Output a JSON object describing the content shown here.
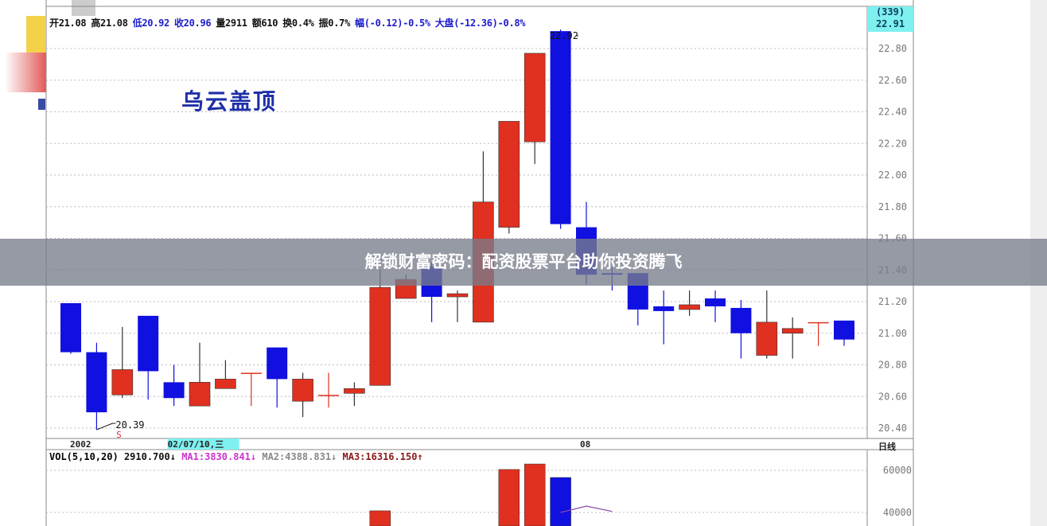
{
  "header": {
    "items": [
      {
        "text": "开21.08",
        "color": "#111111"
      },
      {
        "text": "高21.08",
        "color": "#111111"
      },
      {
        "text": "低20.92",
        "color": "#1c1ccc"
      },
      {
        "text": "收20.96",
        "color": "#1c1ccc"
      },
      {
        "text": "量2911",
        "color": "#111111"
      },
      {
        "text": "额610",
        "color": "#111111"
      },
      {
        "text": "换0.4%",
        "color": "#111111"
      },
      {
        "text": "振0.7%",
        "color": "#111111"
      },
      {
        "text": "幅(-0.12)-0.5%",
        "color": "#1c1ccc"
      },
      {
        "text": "大盘(-12.36)-0.8%",
        "color": "#1c1ccc"
      }
    ]
  },
  "pattern_title": "乌云盖顶",
  "price_tag": {
    "count": "(339)",
    "price": "22.91"
  },
  "banner": "解锁财富密码：配资股票平台助你投资腾飞",
  "chart_data": [
    {
      "type": "candlestick",
      "period": "日线",
      "ylim": [
        20.35,
        22.95
      ],
      "yticks": [
        "22.80",
        "22.60",
        "22.40",
        "22.20",
        "22.00",
        "21.80",
        "21.60",
        "21.40",
        "21.20",
        "21.00",
        "20.80",
        "20.60",
        "20.40"
      ],
      "xlabels": [
        {
          "index": 0,
          "text": "2002"
        },
        {
          "index": 4,
          "text": "02/07/10,三",
          "highlight": true
        },
        {
          "index": 20,
          "text": "08"
        }
      ],
      "annotations": [
        {
          "index": 20,
          "text": "22.92"
        },
        {
          "index": 1,
          "text": "20.39"
        },
        {
          "index": 1,
          "text": "S"
        }
      ],
      "colors": {
        "up": "#e03020",
        "down": "#1010e0"
      },
      "ohlc": [
        [
          21.19,
          21.19,
          20.87,
          20.88
        ],
        [
          20.88,
          20.94,
          20.39,
          20.5
        ],
        [
          20.61,
          21.04,
          20.59,
          20.77
        ],
        [
          21.11,
          21.11,
          20.58,
          20.76
        ],
        [
          20.69,
          20.8,
          20.54,
          20.59
        ],
        [
          20.54,
          20.94,
          20.54,
          20.69
        ],
        [
          20.65,
          20.83,
          20.65,
          20.71
        ],
        [
          20.75,
          20.75,
          20.54,
          20.75
        ],
        [
          20.91,
          20.91,
          20.53,
          20.71
        ],
        [
          20.57,
          20.75,
          20.47,
          20.71
        ],
        [
          20.61,
          20.75,
          20.53,
          20.61
        ],
        [
          20.62,
          20.69,
          20.54,
          20.65
        ],
        [
          20.67,
          21.4,
          20.67,
          21.29
        ],
        [
          21.22,
          21.37,
          21.22,
          21.34
        ],
        [
          21.42,
          21.45,
          21.07,
          21.23
        ],
        [
          21.23,
          21.27,
          21.07,
          21.25
        ],
        [
          21.07,
          22.15,
          21.07,
          21.83
        ],
        [
          21.67,
          22.34,
          21.63,
          22.34
        ],
        [
          22.21,
          22.77,
          22.07,
          22.77
        ],
        [
          22.91,
          22.92,
          21.66,
          21.69
        ],
        [
          21.67,
          21.83,
          21.31,
          21.37
        ],
        [
          21.38,
          21.42,
          21.27,
          21.37
        ],
        [
          21.38,
          21.38,
          21.05,
          21.15
        ],
        [
          21.17,
          21.27,
          20.93,
          21.14
        ],
        [
          21.15,
          21.27,
          21.11,
          21.18
        ],
        [
          21.22,
          21.27,
          21.07,
          21.17
        ],
        [
          21.16,
          21.21,
          20.84,
          21.0
        ],
        [
          20.86,
          21.27,
          20.84,
          21.07
        ],
        [
          21.0,
          21.1,
          20.84,
          21.03
        ],
        [
          21.07,
          21.07,
          20.92,
          21.07
        ],
        [
          21.08,
          21.08,
          20.92,
          20.96
        ]
      ]
    },
    {
      "type": "bar",
      "title": "VOL(5,10,20)",
      "ylim": [
        38000,
        66000
      ],
      "yticks": [
        "60000",
        "40000"
      ],
      "legend": [
        {
          "text": "2910.700↓",
          "color": "#111111"
        },
        {
          "text": "MA1:3830.841↓",
          "color": "#cc33cc"
        },
        {
          "text": "MA2:4388.831↓",
          "color": "#888888"
        },
        {
          "text": "MA3:16316.150↑",
          "color": "#8b1a1a"
        }
      ],
      "visible_bars": [
        {
          "index": 12,
          "value": 40800,
          "color": "#e03020"
        },
        {
          "index": 17,
          "value": 60400,
          "color": "#e03020"
        },
        {
          "index": 18,
          "value": 63000,
          "color": "#e03020"
        },
        {
          "index": 19,
          "value": 56600,
          "color": "#1010e0"
        }
      ],
      "ma_line": {
        "color": "#8a4aa8",
        "points": [
          [
            19,
            40000
          ],
          [
            20,
            43000
          ],
          [
            21,
            40500
          ]
        ]
      }
    }
  ]
}
